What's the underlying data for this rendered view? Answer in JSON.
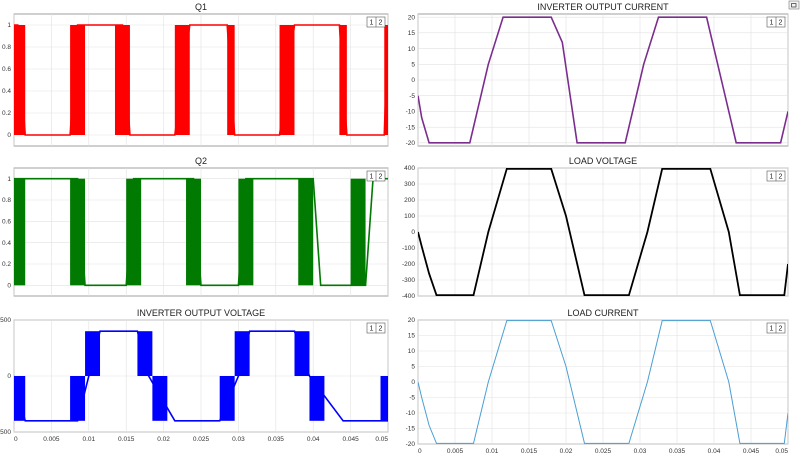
{
  "window": {
    "corner_icon": "restore-icon"
  },
  "badge": {
    "left": "1",
    "right": "2"
  },
  "x_ticks": [
    "0",
    "0.005",
    "0.01",
    "0.015",
    "0.02",
    "0.025",
    "0.03",
    "0.035",
    "0.04",
    "0.045",
    "0.05"
  ],
  "chart_data": [
    {
      "id": "q1",
      "type": "line",
      "title": "Q1",
      "color": "#ff0000",
      "shape": "pwm_gate_q1",
      "xlim": [
        0,
        0.05
      ],
      "ylim": [
        -0.1,
        1.1
      ],
      "y_ticks": [
        "0",
        "0.2",
        "0.4",
        "0.6",
        "0.8",
        "1"
      ],
      "y_tick_values": [
        0,
        0.2,
        0.4,
        0.6,
        0.8,
        1
      ],
      "show_x_ticks": false,
      "grid": true,
      "series": [
        {
          "values": [
            [
              0,
              1
            ],
            [
              0.0005,
              1
            ],
            [
              0.0015,
              0
            ],
            [
              0.0075,
              0
            ],
            [
              0.0085,
              1
            ],
            [
              0.0095,
              1
            ],
            [
              0.0135,
              1
            ],
            [
              0.0145,
              1
            ],
            [
              0.0155,
              0
            ],
            [
              0.0215,
              0
            ],
            [
              0.0235,
              1
            ],
            [
              0.0285,
              1
            ],
            [
              0.0295,
              0
            ],
            [
              0.0355,
              0
            ],
            [
              0.0375,
              1
            ],
            [
              0.0435,
              1
            ],
            [
              0.0445,
              0
            ],
            [
              0.0495,
              0
            ],
            [
              0.05,
              1
            ]
          ]
        }
      ]
    },
    {
      "id": "q2",
      "type": "line",
      "title": "Q2",
      "color": "#007a00",
      "shape": "pwm_gate_q2",
      "xlim": [
        0,
        0.05
      ],
      "ylim": [
        -0.1,
        1.1
      ],
      "y_ticks": [
        "0",
        "0.2",
        "0.4",
        "0.6",
        "0.8",
        "1"
      ],
      "y_tick_values": [
        0,
        0.2,
        0.4,
        0.6,
        0.8,
        1
      ],
      "show_x_ticks": false,
      "grid": true,
      "series": [
        {
          "values": [
            [
              0,
              1
            ],
            [
              0.002,
              1
            ],
            [
              0.0035,
              1
            ],
            [
              0.0085,
              1
            ],
            [
              0.0095,
              0
            ],
            [
              0.015,
              0
            ],
            [
              0.016,
              1
            ],
            [
              0.024,
              1
            ],
            [
              0.025,
              0
            ],
            [
              0.03,
              0
            ],
            [
              0.031,
              1
            ],
            [
              0.04,
              1
            ],
            [
              0.041,
              0
            ],
            [
              0.047,
              0
            ],
            [
              0.048,
              1
            ],
            [
              0.05,
              1
            ]
          ]
        }
      ]
    },
    {
      "id": "vinv",
      "type": "line",
      "title": "INVERTER OUTPUT VOLTAGE",
      "color": "#0000ff",
      "shape": "stepped_quasi_square",
      "xlim": [
        0,
        0.05
      ],
      "ylim": [
        -500,
        500
      ],
      "y_ticks": [
        "-500",
        "0",
        "500"
      ],
      "y_tick_values": [
        -500,
        0,
        500
      ],
      "show_x_ticks": true,
      "grid": true,
      "series": [
        {
          "values": [
            [
              0,
              0
            ],
            [
              0.0015,
              -400
            ],
            [
              0.0085,
              -400
            ],
            [
              0.01,
              0
            ],
            [
              0.0115,
              400
            ],
            [
              0.0165,
              400
            ],
            [
              0.018,
              0
            ],
            [
              0.0215,
              -400
            ],
            [
              0.0275,
              -400
            ],
            [
              0.03,
              0
            ],
            [
              0.0315,
              400
            ],
            [
              0.0375,
              400
            ],
            [
              0.0395,
              0
            ],
            [
              0.044,
              -400
            ],
            [
              0.05,
              -400
            ]
          ]
        }
      ]
    },
    {
      "id": "iinv",
      "type": "line",
      "title": "INVERTER OUTPUT CURRENT",
      "color": "#7b2d8e",
      "xlim": [
        0,
        0.05
      ],
      "ylim": [
        -21,
        21
      ],
      "y_ticks": [
        "-20",
        "-15",
        "-10",
        "-5",
        "0",
        "5",
        "10",
        "15",
        "20"
      ],
      "y_tick_values": [
        -20,
        -15,
        -10,
        -5,
        0,
        5,
        10,
        15,
        20
      ],
      "show_x_ticks": false,
      "grid": true,
      "series": [
        {
          "values": [
            [
              0,
              -5
            ],
            [
              0.0005,
              -12
            ],
            [
              0.0015,
              -20
            ],
            [
              0.007,
              -20
            ],
            [
              0.0095,
              5
            ],
            [
              0.0115,
              20
            ],
            [
              0.018,
              20
            ],
            [
              0.0195,
              12
            ],
            [
              0.0215,
              -20
            ],
            [
              0.028,
              -20
            ],
            [
              0.0305,
              5
            ],
            [
              0.0325,
              20
            ],
            [
              0.039,
              20
            ],
            [
              0.041,
              0
            ],
            [
              0.043,
              -20
            ],
            [
              0.049,
              -20
            ],
            [
              0.05,
              -10
            ]
          ]
        }
      ]
    },
    {
      "id": "vload",
      "type": "line",
      "title": "LOAD VOLTAGE",
      "color": "#000000",
      "xlim": [
        0,
        0.05
      ],
      "ylim": [
        -400,
        400
      ],
      "y_ticks": [
        "-400",
        "-300",
        "-200",
        "-100",
        "0",
        "100",
        "200",
        "300",
        "400"
      ],
      "y_tick_values": [
        -400,
        -300,
        -200,
        -100,
        0,
        100,
        200,
        300,
        400
      ],
      "show_x_ticks": false,
      "grid": true,
      "series": [
        {
          "values": [
            [
              0,
              0
            ],
            [
              0.0005,
              -90
            ],
            [
              0.0015,
              -260
            ],
            [
              0.0025,
              -395
            ],
            [
              0.0075,
              -395
            ],
            [
              0.0095,
              0
            ],
            [
              0.012,
              395
            ],
            [
              0.018,
              395
            ],
            [
              0.02,
              100
            ],
            [
              0.0225,
              -395
            ],
            [
              0.0285,
              -395
            ],
            [
              0.031,
              0
            ],
            [
              0.033,
              395
            ],
            [
              0.0395,
              395
            ],
            [
              0.042,
              0
            ],
            [
              0.0435,
              -395
            ],
            [
              0.0495,
              -395
            ],
            [
              0.05,
              -200
            ]
          ]
        }
      ]
    },
    {
      "id": "iload",
      "type": "line",
      "title": "LOAD CURRENT",
      "color": "#4a9fd4",
      "xlim": [
        0,
        0.05
      ],
      "ylim": [
        -20,
        20
      ],
      "y_ticks": [
        "-20",
        "-15",
        "-10",
        "-5",
        "0",
        "5",
        "10",
        "15",
        "20"
      ],
      "y_tick_values": [
        -20,
        -15,
        -10,
        -5,
        0,
        5,
        10,
        15,
        20
      ],
      "show_x_ticks": true,
      "grid": true,
      "series": [
        {
          "values": [
            [
              0,
              0
            ],
            [
              0.0005,
              -5
            ],
            [
              0.0015,
              -14
            ],
            [
              0.0025,
              -19.8
            ],
            [
              0.0075,
              -19.8
            ],
            [
              0.0095,
              0
            ],
            [
              0.012,
              19.8
            ],
            [
              0.018,
              19.8
            ],
            [
              0.02,
              5
            ],
            [
              0.0225,
              -19.8
            ],
            [
              0.0285,
              -19.8
            ],
            [
              0.031,
              0
            ],
            [
              0.033,
              19.8
            ],
            [
              0.0395,
              19.8
            ],
            [
              0.042,
              0
            ],
            [
              0.0435,
              -19.8
            ],
            [
              0.0495,
              -19.8
            ],
            [
              0.05,
              -10
            ]
          ]
        }
      ]
    }
  ]
}
